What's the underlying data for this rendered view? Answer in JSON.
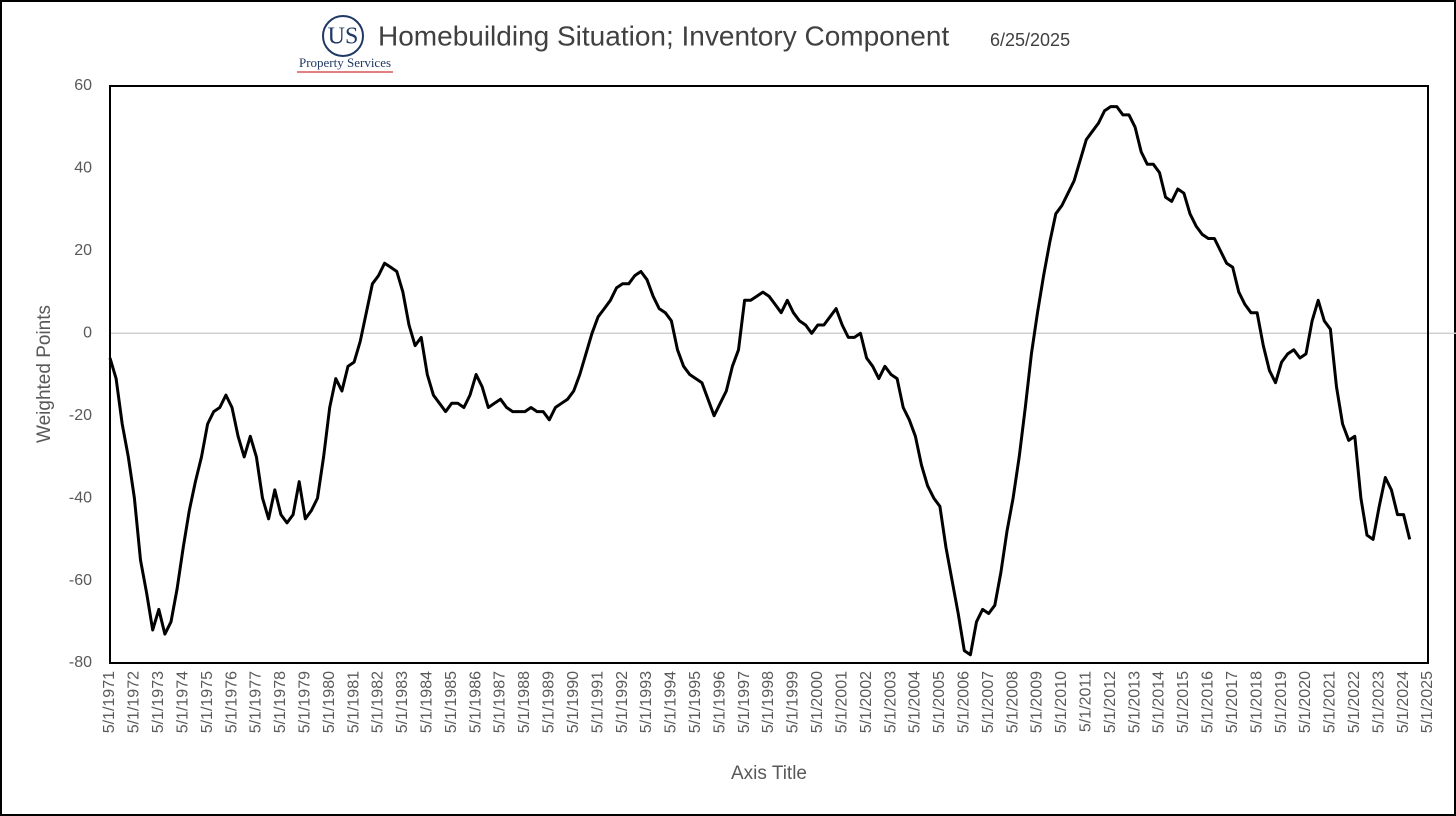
{
  "logo": {
    "initials": "US",
    "name": "Property Services"
  },
  "chart_data": {
    "type": "line",
    "title": "Homebuilding Situation; Inventory Component",
    "subtitle": "6/25/2025",
    "ylabel": "Weighted Points",
    "xlabel": "Axis Title",
    "x": [
      "5/1/1971",
      "8/1/1971",
      "11/1/1971",
      "2/1/1972",
      "5/1/1972",
      "8/1/1972",
      "11/1/1972",
      "2/1/1973",
      "5/1/1973",
      "8/1/1973",
      "11/1/1973",
      "2/1/1974",
      "5/1/1974",
      "8/1/1974",
      "11/1/1974",
      "2/1/1975",
      "5/1/1975",
      "8/1/1975",
      "11/1/1975",
      "2/1/1976",
      "5/1/1976",
      "8/1/1976",
      "11/1/1976",
      "2/1/1977",
      "5/1/1977",
      "8/1/1977",
      "11/1/1977",
      "2/1/1978",
      "5/1/1978",
      "8/1/1978",
      "11/1/1978",
      "2/1/1979",
      "5/1/1979",
      "8/1/1979",
      "11/1/1979",
      "2/1/1980",
      "5/1/1980",
      "8/1/1980",
      "11/1/1980",
      "2/1/1981",
      "5/1/1981",
      "8/1/1981",
      "11/1/1981",
      "2/1/1982",
      "5/1/1982",
      "8/1/1982",
      "11/1/1982",
      "2/1/1983",
      "5/1/1983",
      "8/1/1983",
      "11/1/1983",
      "2/1/1984",
      "5/1/1984",
      "8/1/1984",
      "11/1/1984",
      "2/1/1985",
      "5/1/1985",
      "8/1/1985",
      "11/1/1985",
      "2/1/1986",
      "5/1/1986",
      "8/1/1986",
      "11/1/1986",
      "2/1/1987",
      "5/1/1987",
      "8/1/1987",
      "11/1/1987",
      "2/1/1988",
      "5/1/1988",
      "8/1/1988",
      "11/1/1988",
      "2/1/1989",
      "5/1/1989",
      "8/1/1989",
      "11/1/1989",
      "2/1/1990",
      "5/1/1990",
      "8/1/1990",
      "11/1/1990",
      "2/1/1991",
      "5/1/1991",
      "8/1/1991",
      "11/1/1991",
      "2/1/1992",
      "5/1/1992",
      "8/1/1992",
      "11/1/1992",
      "2/1/1993",
      "5/1/1993",
      "8/1/1993",
      "11/1/1993",
      "2/1/1994",
      "5/1/1994",
      "8/1/1994",
      "11/1/1994",
      "2/1/1995",
      "5/1/1995",
      "8/1/1995",
      "11/1/1995",
      "2/1/1996",
      "5/1/1996",
      "8/1/1996",
      "11/1/1996",
      "2/1/1997",
      "5/1/1997",
      "8/1/1997",
      "11/1/1997",
      "2/1/1998",
      "5/1/1998",
      "8/1/1998",
      "11/1/1998",
      "2/1/1999",
      "5/1/1999",
      "8/1/1999",
      "11/1/1999",
      "2/1/2000",
      "5/1/2000",
      "8/1/2000",
      "11/1/2000",
      "2/1/2001",
      "5/1/2001",
      "8/1/2001",
      "11/1/2001",
      "2/1/2002",
      "5/1/2002",
      "8/1/2002",
      "11/1/2002",
      "2/1/2003",
      "5/1/2003",
      "8/1/2003",
      "11/1/2003",
      "2/1/2004",
      "5/1/2004",
      "8/1/2004",
      "11/1/2004",
      "2/1/2005",
      "5/1/2005",
      "8/1/2005",
      "11/1/2005",
      "2/1/2006",
      "5/1/2006",
      "8/1/2006",
      "11/1/2006",
      "2/1/2007",
      "5/1/2007",
      "8/1/2007",
      "11/1/2007",
      "2/1/2008",
      "5/1/2008",
      "8/1/2008",
      "11/1/2008",
      "2/1/2009",
      "5/1/2009",
      "8/1/2009",
      "11/1/2009",
      "2/1/2010",
      "5/1/2010",
      "8/1/2010",
      "11/1/2010",
      "2/1/2011",
      "5/1/2011",
      "8/1/2011",
      "11/1/2011",
      "2/1/2012",
      "5/1/2012",
      "8/1/2012",
      "11/1/2012",
      "2/1/2013",
      "5/1/2013",
      "8/1/2013",
      "11/1/2013",
      "2/1/2014",
      "5/1/2014",
      "8/1/2014",
      "11/1/2014",
      "2/1/2015",
      "5/1/2015",
      "8/1/2015",
      "11/1/2015",
      "2/1/2016",
      "5/1/2016",
      "8/1/2016",
      "11/1/2016",
      "2/1/2017",
      "5/1/2017",
      "8/1/2017",
      "11/1/2017",
      "2/1/2018",
      "5/1/2018",
      "8/1/2018",
      "11/1/2018",
      "2/1/2019",
      "5/1/2019",
      "8/1/2019",
      "11/1/2019",
      "2/1/2020",
      "5/1/2020",
      "8/1/2020",
      "11/1/2020",
      "2/1/2021",
      "5/1/2021",
      "8/1/2021",
      "11/1/2021",
      "2/1/2022",
      "5/1/2022",
      "8/1/2022",
      "11/1/2022",
      "2/1/2023",
      "5/1/2023",
      "8/1/2023",
      "11/1/2023",
      "2/1/2024",
      "5/1/2024",
      "8/1/2024"
    ],
    "series": [
      {
        "color": "#000000",
        "values": [
          -6,
          -11,
          -22,
          -30,
          -40,
          -55,
          -63,
          -72,
          -67,
          -73,
          -70,
          -62,
          -52,
          -43,
          -36,
          -30,
          -22,
          -19,
          -18,
          -15,
          -18,
          -25,
          -30,
          -25,
          -30,
          -40,
          -45,
          -38,
          -44,
          -46,
          -44,
          -36,
          -45,
          -43,
          -40,
          -30,
          -18,
          -11,
          -14,
          -8,
          -7,
          -2,
          5,
          12,
          14,
          17,
          16,
          15,
          10,
          2,
          -3,
          -1,
          -10,
          -15,
          -17,
          -19,
          -17,
          -17,
          -18,
          -15,
          -10,
          -13,
          -18,
          -17,
          -16,
          -18,
          -19,
          -19,
          -19,
          -18,
          -19,
          -19,
          -21,
          -18,
          -17,
          -16,
          -14,
          -10,
          -5,
          0,
          4,
          6,
          8,
          11,
          12,
          12,
          14,
          15,
          13,
          9,
          6,
          5,
          3,
          -4,
          -8,
          -10,
          -11,
          -12,
          -16,
          -20,
          -17,
          -14,
          -8,
          -4,
          8,
          8,
          9,
          10,
          9,
          7,
          5,
          8,
          5,
          3,
          2,
          0,
          2,
          2,
          4,
          6,
          2,
          -1,
          -1,
          0,
          -6,
          -8,
          -11,
          -8,
          -10,
          -11,
          -18,
          -21,
          -25,
          -32,
          -37,
          -40,
          -42,
          -52,
          -60,
          -68,
          -77,
          -78,
          -70,
          -67,
          -68,
          -66,
          -58,
          -48,
          -40,
          -30,
          -18,
          -5,
          5,
          14,
          22,
          29,
          31,
          34,
          37,
          42,
          47,
          49,
          51,
          54,
          55,
          55,
          53,
          53,
          50,
          44,
          41,
          41,
          39,
          33,
          32,
          35,
          34,
          29,
          26,
          24,
          23,
          23,
          20,
          17,
          16,
          10,
          7,
          5,
          5,
          -3,
          -9,
          -12,
          -7,
          -5,
          -4,
          -6,
          -5,
          3,
          8,
          3,
          1,
          -13,
          -22,
          -26,
          -25,
          -40,
          -49,
          -50,
          -42,
          -35,
          -38,
          -44,
          -44,
          -50
        ]
      }
    ],
    "xlim": [
      "5/1/1971",
      "5/1/2025"
    ],
    "xticks": [
      "5/1/1971",
      "5/1/1972",
      "5/1/1973",
      "5/1/1974",
      "5/1/1975",
      "5/1/1976",
      "5/1/1977",
      "5/1/1978",
      "5/1/1979",
      "5/1/1980",
      "5/1/1981",
      "5/1/1982",
      "5/1/1983",
      "5/1/1984",
      "5/1/1985",
      "5/1/1986",
      "5/1/1987",
      "5/1/1988",
      "5/1/1989",
      "5/1/1990",
      "5/1/1991",
      "5/1/1992",
      "5/1/1993",
      "5/1/1994",
      "5/1/1995",
      "5/1/1996",
      "5/1/1997",
      "5/1/1998",
      "5/1/1999",
      "5/1/2000",
      "5/1/2001",
      "5/1/2002",
      "5/1/2003",
      "5/1/2004",
      "5/1/2005",
      "5/1/2006",
      "5/1/2007",
      "5/1/2008",
      "5/1/2009",
      "5/1/2010",
      "5/1/2011",
      "5/1/2012",
      "5/1/2013",
      "5/1/2014",
      "5/1/2015",
      "5/1/2016",
      "5/1/2017",
      "5/1/2018",
      "5/1/2019",
      "5/1/2020",
      "5/1/2021",
      "5/1/2022",
      "5/1/2023",
      "5/1/2024",
      "5/1/2025"
    ],
    "ylim": [
      -80,
      60
    ],
    "yticks": [
      -80,
      -60,
      -40,
      -20,
      0,
      20,
      40,
      60
    ],
    "zero_line": true,
    "grid": false
  }
}
